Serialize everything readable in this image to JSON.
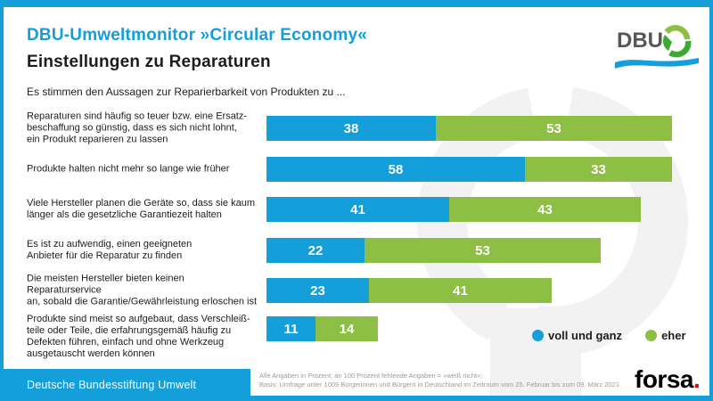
{
  "colors": {
    "blue": "#149fdb",
    "green": "#8dbf45",
    "ink": "#1d1d1b",
    "footnote_gray": "#9b9b9b",
    "watermark": "#f2f2f2",
    "dbu_gray": "#575756",
    "forsa_red": "#e30613"
  },
  "header": {
    "title_blue": "DBU-Umweltmonitor »Circular Economy«",
    "title_black": "Einstellungen zu Reparaturen",
    "subtitle": "Es stimmen den Aussagen zur Reparierbarkeit von Produkten zu ...",
    "logo_text": "DBU"
  },
  "chart_data": {
    "type": "bar",
    "orientation": "horizontal",
    "stacked": true,
    "value_unit": "percent",
    "xlim": [
      0,
      100
    ],
    "grid": false,
    "legend_position": "bottom-right",
    "categories": [
      "Reparaturen sind häufig so teuer bzw. eine Ersatzbeschaffung so günstig, dass es sich nicht lohnt, ein Produkt reparieren zu lassen",
      "Produkte halten nicht mehr so lange wie früher",
      "Viele Hersteller planen die Geräte so, dass sie kaum länger als die gesetzliche Garantiezeit halten",
      "Es ist zu aufwendig, einen geeigneten Anbieter für die Reparatur zu finden",
      "Die meisten Hersteller bieten keinen Reparaturservice an, sobald die Garantie/Gewährleistung erloschen ist",
      "Produkte sind meist so aufgebaut, dass Verschleißteile oder Teile, die erfahrungsgemäß häufig zu Defekten führen, einfach und ohne Werkzeug ausgetauscht werden können"
    ],
    "category_display_lines": [
      [
        "Reparaturen sind häufig so teuer bzw. eine Ersatz-",
        "beschaffung so günstig, dass es sich nicht lohnt,",
        "ein Produkt reparieren zu lassen"
      ],
      [
        "Produkte halten nicht mehr so lange wie früher"
      ],
      [
        "Viele Hersteller planen die Geräte so, dass sie kaum",
        "länger als die gesetzliche Garantiezeit halten"
      ],
      [
        "Es ist zu aufwendig, einen geeigneten",
        "Anbieter für die Reparatur zu finden"
      ],
      [
        "Die meisten Hersteller bieten keinen Reparaturservice",
        "an, sobald die Garantie/Gewährleistung erloschen ist"
      ],
      [
        "Produkte sind meist so aufgebaut, dass Verschleiß-",
        "teile oder Teile, die erfahrungsgemäß häufig zu",
        "Defekten führen, einfach und ohne Werkzeug",
        "ausgetauscht werden können"
      ]
    ],
    "series": [
      {
        "name": "voll und ganz",
        "color": "#149fdb",
        "values": [
          38,
          58,
          41,
          22,
          23,
          11
        ]
      },
      {
        "name": "eher",
        "color": "#8dbf45",
        "values": [
          53,
          33,
          43,
          53,
          41,
          14
        ]
      }
    ]
  },
  "legend": {
    "items": [
      {
        "label": "voll und ganz",
        "color": "#149fdb"
      },
      {
        "label": "eher",
        "color": "#8dbf45"
      }
    ]
  },
  "footer": {
    "org": "Deutsche Bundesstiftung Umwelt",
    "note_line1": "Alle Angaben in Prozent; an 100 Prozent fehlende Angaben = »weiß nicht«;",
    "note_line2": "Basis: Umfrage unter 1009 Bürgerinnen und Bürgern in Deutschland im Zeitraum vom 25. Februar bis zum 09. März 2021",
    "forsa_text": "forsa",
    "forsa_dot": "."
  }
}
